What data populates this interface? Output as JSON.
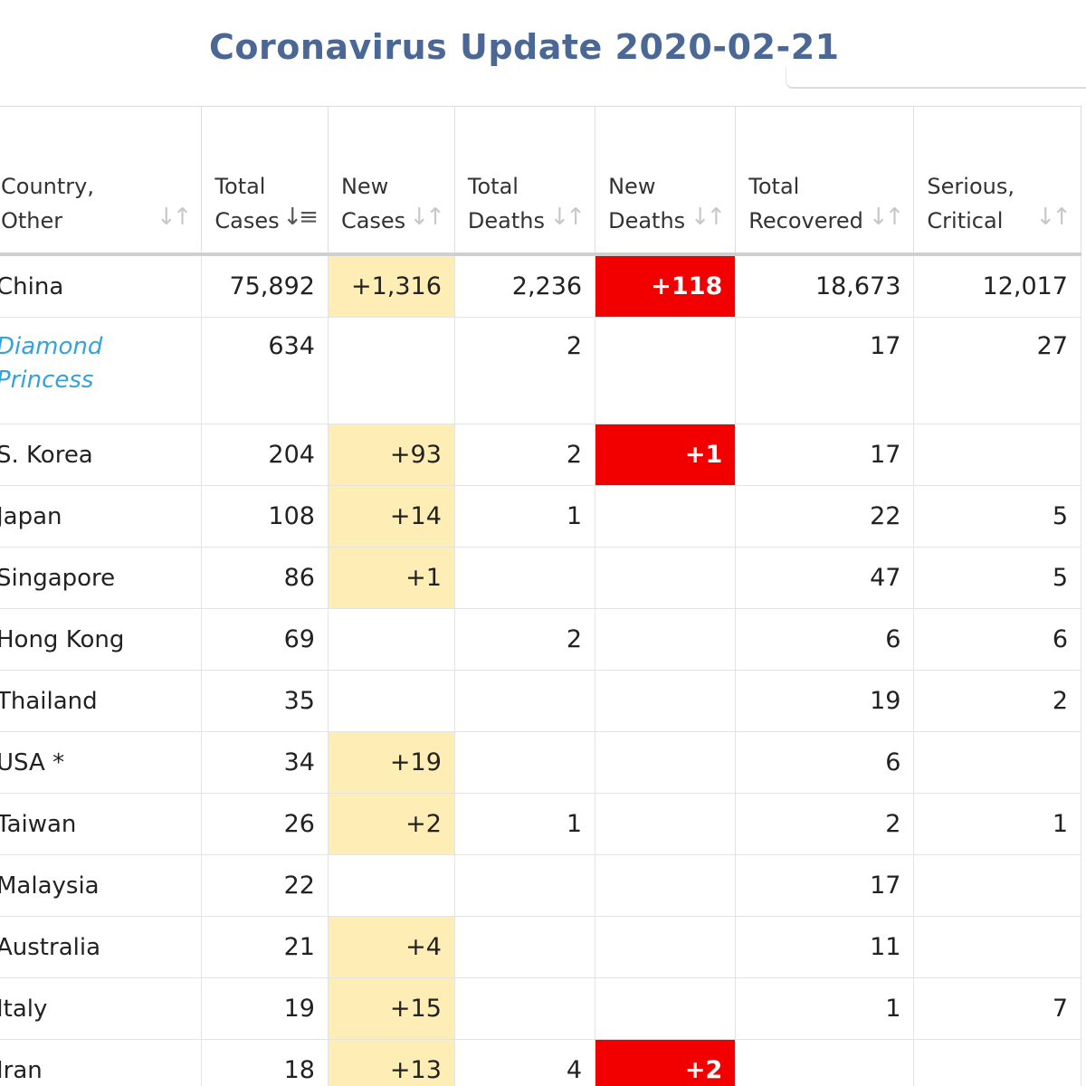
{
  "title": "Coronavirus Update 2020-02-21",
  "colors": {
    "title": "#4a6796",
    "new_cases_highlight": "#feeeb5",
    "new_deaths_highlight": "#f20000",
    "link": "#35a2d9"
  },
  "table": {
    "headers": [
      {
        "label": "Country,\nOther",
        "sort_icon": "sort-icon",
        "sorted": false
      },
      {
        "label": "Total\nCases",
        "sort_icon": "sort-desc-icon",
        "sorted": true
      },
      {
        "label": "New\nCases",
        "sort_icon": "sort-icon",
        "sorted": false
      },
      {
        "label": "Total\nDeaths",
        "sort_icon": "sort-icon",
        "sorted": false
      },
      {
        "label": "New\nDeaths",
        "sort_icon": "sort-icon",
        "sorted": false
      },
      {
        "label": "Total\nRecovered",
        "sort_icon": "sort-icon",
        "sorted": false
      },
      {
        "label": "Serious,\nCritical",
        "sort_icon": "sort-icon",
        "sorted": false
      }
    ],
    "rows": [
      {
        "country": "China",
        "total_cases": "75,892",
        "new_cases": "+1,316",
        "total_deaths": "2,236",
        "new_deaths": "+118",
        "total_recovered": "18,673",
        "serious_critical": "12,017"
      },
      {
        "country": "Diamond\nPrincess",
        "is_link": true,
        "total_cases": "634",
        "new_cases": "",
        "total_deaths": "2",
        "new_deaths": "",
        "total_recovered": "17",
        "serious_critical": "27"
      },
      {
        "country": "S. Korea",
        "total_cases": "204",
        "new_cases": "+93",
        "total_deaths": "2",
        "new_deaths": "+1",
        "total_recovered": "17",
        "serious_critical": ""
      },
      {
        "country": "Japan",
        "total_cases": "108",
        "new_cases": "+14",
        "total_deaths": "1",
        "new_deaths": "",
        "total_recovered": "22",
        "serious_critical": "5"
      },
      {
        "country": "Singapore",
        "total_cases": "86",
        "new_cases": "+1",
        "total_deaths": "",
        "new_deaths": "",
        "total_recovered": "47",
        "serious_critical": "5"
      },
      {
        "country": "Hong Kong",
        "total_cases": "69",
        "new_cases": "",
        "total_deaths": "2",
        "new_deaths": "",
        "total_recovered": "6",
        "serious_critical": "6"
      },
      {
        "country": "Thailand",
        "total_cases": "35",
        "new_cases": "",
        "total_deaths": "",
        "new_deaths": "",
        "total_recovered": "19",
        "serious_critical": "2"
      },
      {
        "country": "USA *",
        "total_cases": "34",
        "new_cases": "+19",
        "total_deaths": "",
        "new_deaths": "",
        "total_recovered": "6",
        "serious_critical": ""
      },
      {
        "country": "Taiwan",
        "total_cases": "26",
        "new_cases": "+2",
        "total_deaths": "1",
        "new_deaths": "",
        "total_recovered": "2",
        "serious_critical": "1"
      },
      {
        "country": "Malaysia",
        "total_cases": "22",
        "new_cases": "",
        "total_deaths": "",
        "new_deaths": "",
        "total_recovered": "17",
        "serious_critical": ""
      },
      {
        "country": "Australia",
        "total_cases": "21",
        "new_cases": "+4",
        "total_deaths": "",
        "new_deaths": "",
        "total_recovered": "11",
        "serious_critical": ""
      },
      {
        "country": "Italy",
        "total_cases": "19",
        "new_cases": "+15",
        "total_deaths": "",
        "new_deaths": "",
        "total_recovered": "1",
        "serious_critical": "7"
      },
      {
        "country": "Iran",
        "total_cases": "18",
        "new_cases": "+13",
        "total_deaths": "4",
        "new_deaths": "+2",
        "total_recovered": "",
        "serious_critical": ""
      }
    ]
  }
}
